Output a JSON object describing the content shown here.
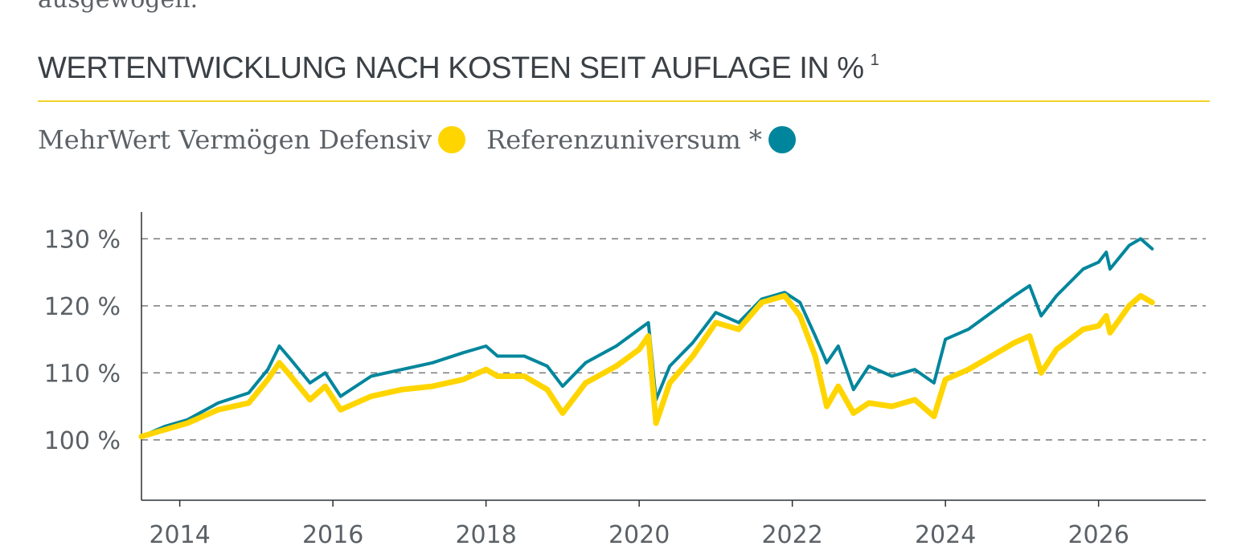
{
  "intro_text": "ausgewogen.",
  "title": "WERTENTWICKLUNG NACH KOSTEN SEIT AUFLAGE IN %",
  "footnote_marker": "1",
  "colors": {
    "accent": "#f3d22a",
    "fund": "#ffd500",
    "reference": "#00869c",
    "text": "#5b6166",
    "grid": "#7a7a7a"
  },
  "legend": [
    {
      "label": "MehrWert Vermögen Defensiv",
      "color": "#ffd500"
    },
    {
      "label": "Referenzuniversum *",
      "color": "#00869c"
    }
  ],
  "chart_data": {
    "type": "line",
    "title": "",
    "xlabel": "",
    "ylabel": "",
    "xlim": [
      2013.5,
      2027.4
    ],
    "ylim": [
      91,
      134
    ],
    "y_ticks": [
      100,
      110,
      120,
      130
    ],
    "y_tick_labels": [
      "100 %",
      "110 %",
      "120 %",
      "130 %"
    ],
    "x_ticks": [
      2014,
      2016,
      2018,
      2020,
      2022,
      2024,
      2026
    ],
    "x_tick_labels": [
      "2014",
      "2016",
      "2018",
      "2020",
      "2022",
      "2024",
      "2026"
    ],
    "grid": "horizontal dashed",
    "legend_position": "top-left",
    "series": [
      {
        "name": "Referenzuniversum *",
        "color": "#00869c",
        "points": [
          [
            2013.5,
            100.5
          ],
          [
            2013.8,
            102.0
          ],
          [
            2014.1,
            103.0
          ],
          [
            2014.5,
            105.5
          ],
          [
            2014.9,
            107.0
          ],
          [
            2015.15,
            110.5
          ],
          [
            2015.3,
            114.0
          ],
          [
            2015.45,
            112.0
          ],
          [
            2015.7,
            108.5
          ],
          [
            2015.9,
            110.0
          ],
          [
            2016.1,
            106.5
          ],
          [
            2016.5,
            109.5
          ],
          [
            2016.9,
            110.5
          ],
          [
            2017.3,
            111.5
          ],
          [
            2017.7,
            113.0
          ],
          [
            2018.0,
            114.0
          ],
          [
            2018.15,
            112.5
          ],
          [
            2018.5,
            112.5
          ],
          [
            2018.8,
            111.0
          ],
          [
            2019.0,
            108.0
          ],
          [
            2019.3,
            111.5
          ],
          [
            2019.7,
            114.0
          ],
          [
            2020.0,
            116.5
          ],
          [
            2020.12,
            117.5
          ],
          [
            2020.22,
            106.0
          ],
          [
            2020.4,
            111.0
          ],
          [
            2020.7,
            114.5
          ],
          [
            2021.0,
            119.0
          ],
          [
            2021.3,
            117.5
          ],
          [
            2021.6,
            121.0
          ],
          [
            2021.9,
            122.0
          ],
          [
            2022.1,
            120.5
          ],
          [
            2022.3,
            115.5
          ],
          [
            2022.45,
            111.5
          ],
          [
            2022.6,
            114.0
          ],
          [
            2022.8,
            107.5
          ],
          [
            2023.0,
            111.0
          ],
          [
            2023.3,
            109.5
          ],
          [
            2023.6,
            110.5
          ],
          [
            2023.85,
            108.5
          ],
          [
            2024.0,
            115.0
          ],
          [
            2024.3,
            116.5
          ],
          [
            2024.6,
            119.0
          ],
          [
            2024.9,
            121.5
          ],
          [
            2025.1,
            123.0
          ],
          [
            2025.25,
            118.5
          ],
          [
            2025.45,
            121.5
          ],
          [
            2025.8,
            125.5
          ],
          [
            2026.0,
            126.5
          ],
          [
            2026.1,
            128.0
          ],
          [
            2026.15,
            125.5
          ],
          [
            2026.4,
            129.0
          ],
          [
            2026.55,
            130.0
          ],
          [
            2026.7,
            128.5
          ]
        ]
      },
      {
        "name": "MehrWert Vermögen Defensiv",
        "color": "#ffd500",
        "points": [
          [
            2013.5,
            100.5
          ],
          [
            2013.8,
            101.5
          ],
          [
            2014.1,
            102.5
          ],
          [
            2014.5,
            104.5
          ],
          [
            2014.9,
            105.5
          ],
          [
            2015.15,
            109.0
          ],
          [
            2015.3,
            111.5
          ],
          [
            2015.45,
            109.5
          ],
          [
            2015.7,
            106.0
          ],
          [
            2015.9,
            108.0
          ],
          [
            2016.1,
            104.5
          ],
          [
            2016.5,
            106.5
          ],
          [
            2016.9,
            107.5
          ],
          [
            2017.3,
            108.0
          ],
          [
            2017.7,
            109.0
          ],
          [
            2018.0,
            110.5
          ],
          [
            2018.15,
            109.5
          ],
          [
            2018.5,
            109.5
          ],
          [
            2018.8,
            107.5
          ],
          [
            2019.0,
            104.0
          ],
          [
            2019.3,
            108.5
          ],
          [
            2019.7,
            111.0
          ],
          [
            2020.0,
            113.5
          ],
          [
            2020.12,
            115.5
          ],
          [
            2020.22,
            102.5
          ],
          [
            2020.4,
            108.5
          ],
          [
            2020.7,
            112.5
          ],
          [
            2021.0,
            117.5
          ],
          [
            2021.3,
            116.5
          ],
          [
            2021.6,
            120.5
          ],
          [
            2021.9,
            121.5
          ],
          [
            2022.1,
            118.5
          ],
          [
            2022.3,
            112.5
          ],
          [
            2022.45,
            105.0
          ],
          [
            2022.6,
            108.0
          ],
          [
            2022.8,
            104.0
          ],
          [
            2023.0,
            105.5
          ],
          [
            2023.3,
            105.0
          ],
          [
            2023.6,
            106.0
          ],
          [
            2023.85,
            103.5
          ],
          [
            2024.0,
            109.0
          ],
          [
            2024.3,
            110.5
          ],
          [
            2024.6,
            112.5
          ],
          [
            2024.9,
            114.5
          ],
          [
            2025.1,
            115.5
          ],
          [
            2025.25,
            110.0
          ],
          [
            2025.45,
            113.5
          ],
          [
            2025.8,
            116.5
          ],
          [
            2026.0,
            117.0
          ],
          [
            2026.1,
            118.5
          ],
          [
            2026.15,
            116.0
          ],
          [
            2026.4,
            120.0
          ],
          [
            2026.55,
            121.5
          ],
          [
            2026.7,
            120.5
          ]
        ]
      }
    ]
  }
}
